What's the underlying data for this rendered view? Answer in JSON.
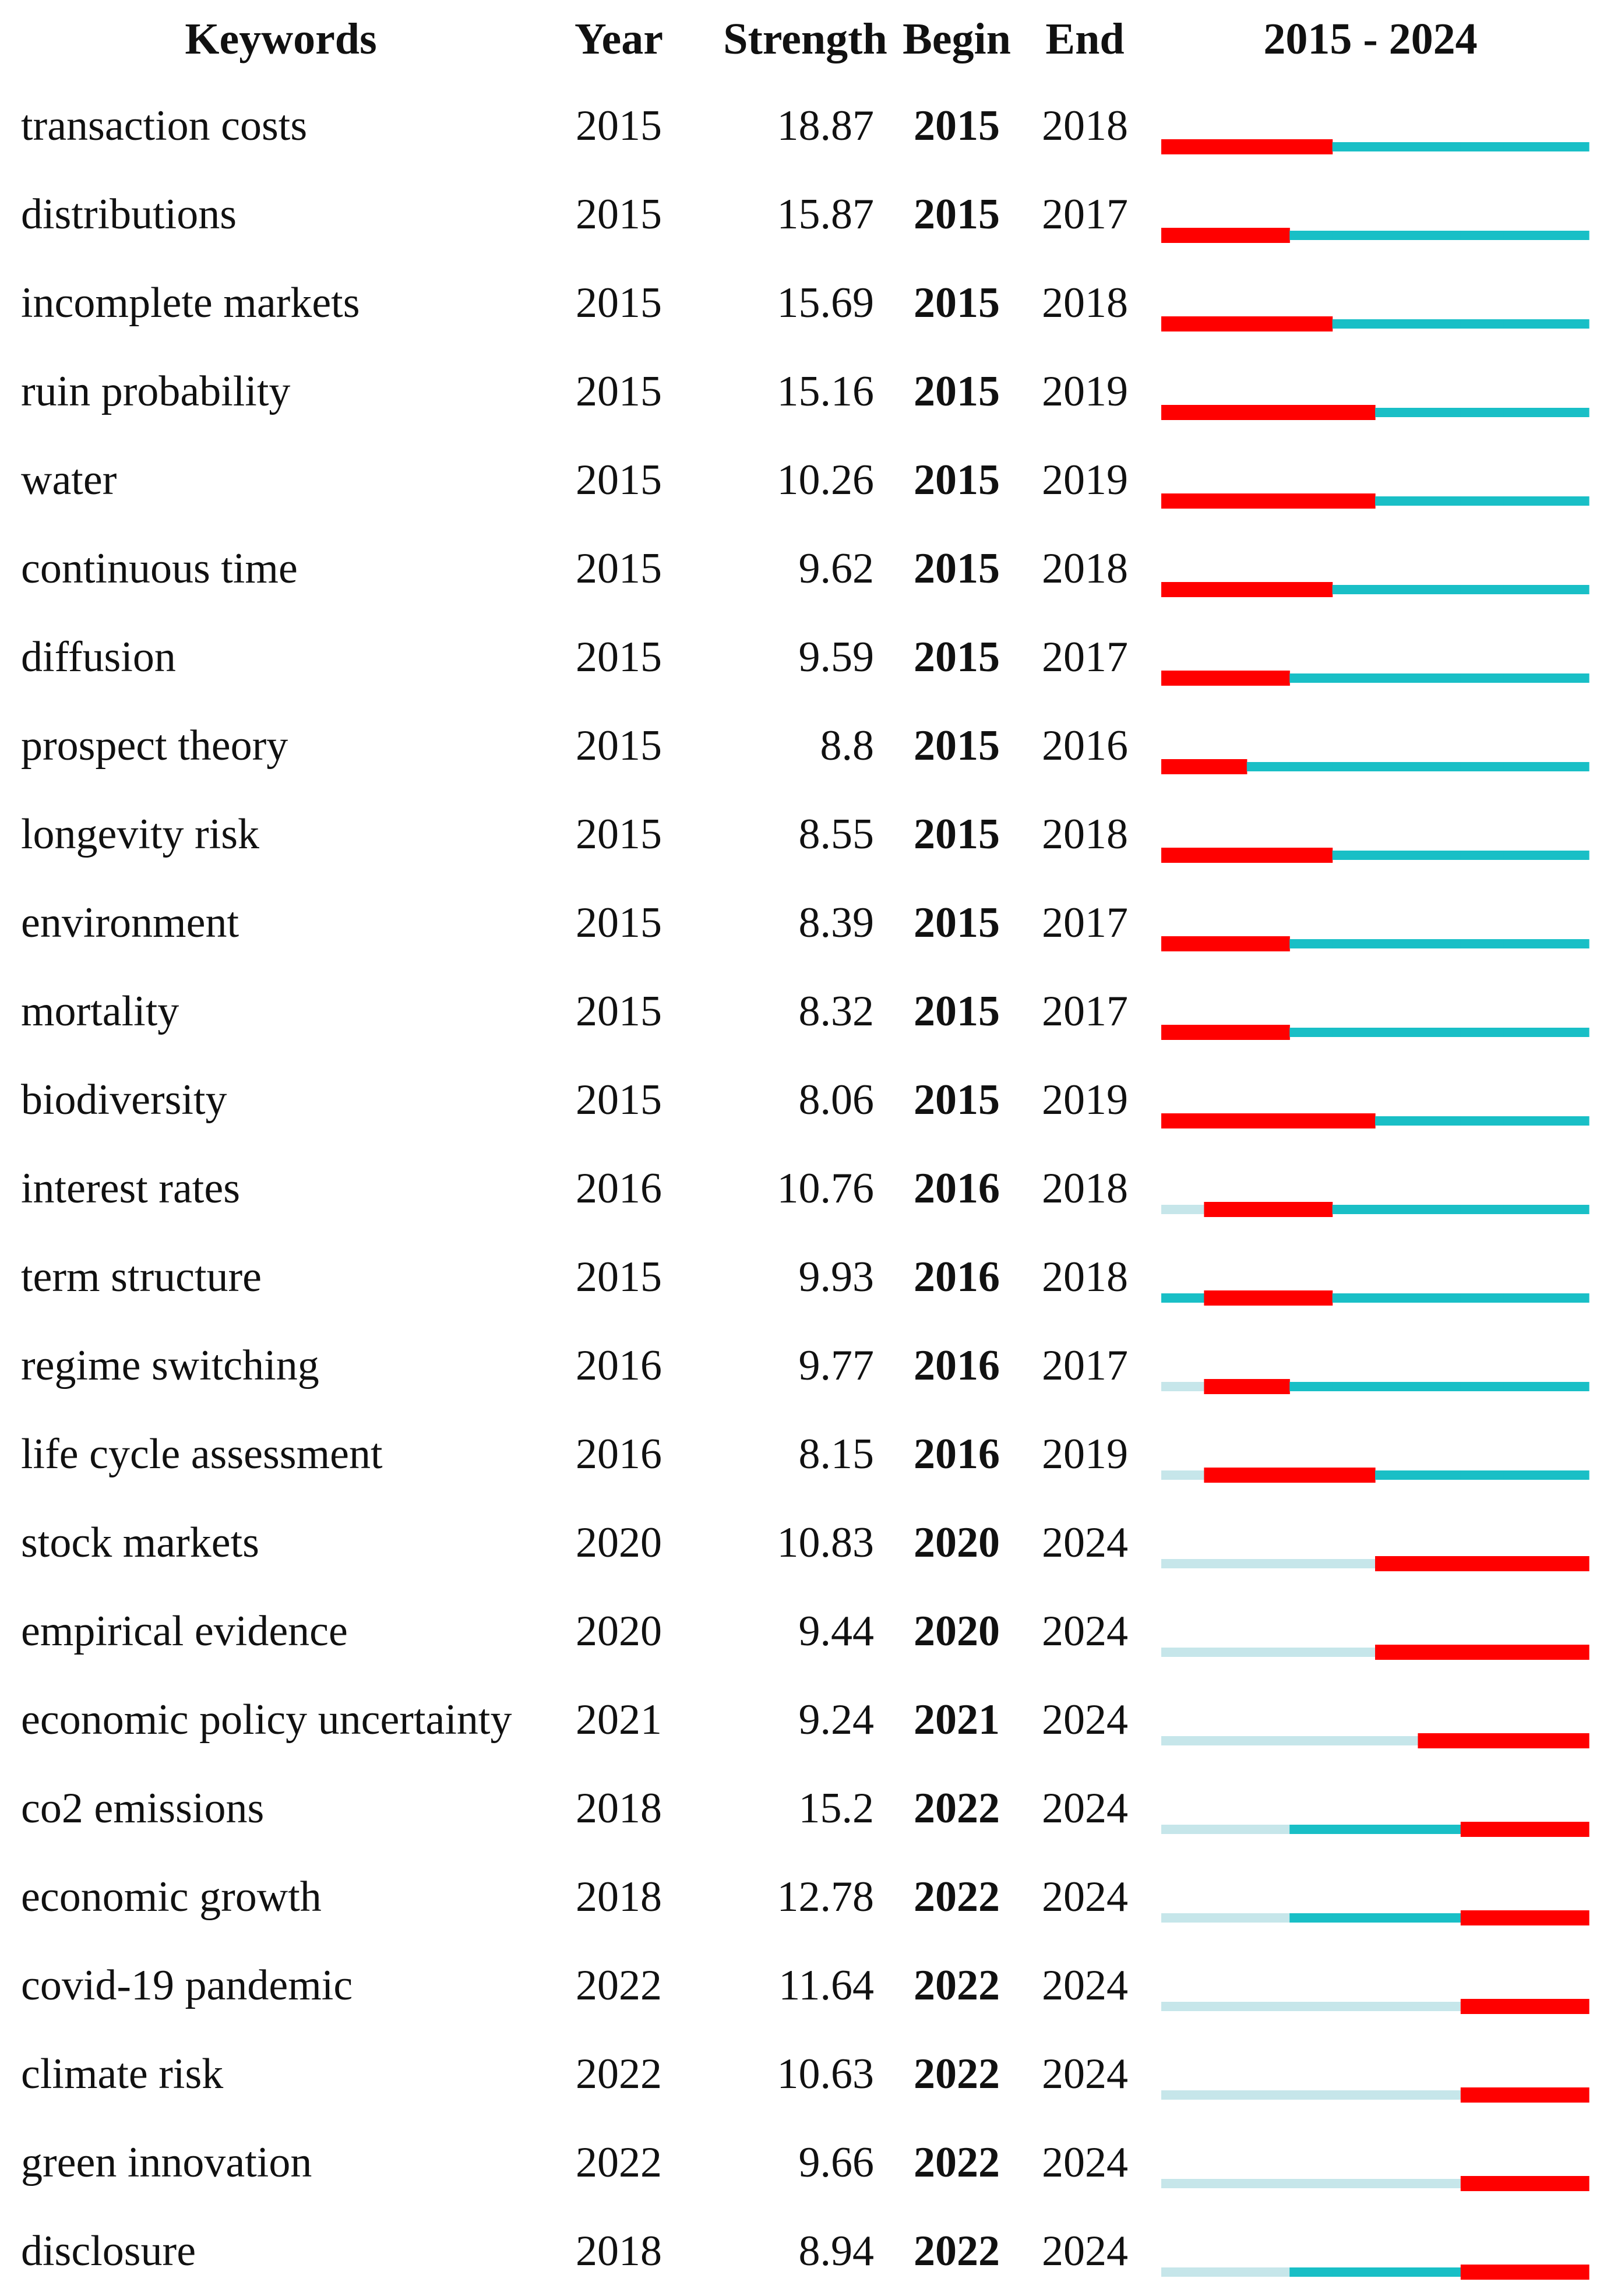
{
  "chart_data": {
    "type": "table",
    "headers": {
      "keywords": "Keywords",
      "year": "Year",
      "strength": "Strength",
      "begin": "Begin",
      "end": "End",
      "range": "2015 - 2024"
    },
    "range_start": 2015,
    "range_end": 2024,
    "colors": {
      "burst": "#ff0000",
      "active": "#19bfc6",
      "inactive": "#c6e6ea"
    },
    "rows": [
      {
        "keyword": "transaction costs",
        "year": "2015",
        "strength": "18.87",
        "begin": "2015",
        "end": "2018"
      },
      {
        "keyword": "distributions",
        "year": "2015",
        "strength": "15.87",
        "begin": "2015",
        "end": "2017"
      },
      {
        "keyword": "incomplete markets",
        "year": "2015",
        "strength": "15.69",
        "begin": "2015",
        "end": "2018"
      },
      {
        "keyword": "ruin probability",
        "year": "2015",
        "strength": "15.16",
        "begin": "2015",
        "end": "2019"
      },
      {
        "keyword": "water",
        "year": "2015",
        "strength": "10.26",
        "begin": "2015",
        "end": "2019"
      },
      {
        "keyword": "continuous time",
        "year": "2015",
        "strength": "9.62",
        "begin": "2015",
        "end": "2018"
      },
      {
        "keyword": "diffusion",
        "year": "2015",
        "strength": "9.59",
        "begin": "2015",
        "end": "2017"
      },
      {
        "keyword": "prospect theory",
        "year": "2015",
        "strength": "8.8",
        "begin": "2015",
        "end": "2016"
      },
      {
        "keyword": "longevity risk",
        "year": "2015",
        "strength": "8.55",
        "begin": "2015",
        "end": "2018"
      },
      {
        "keyword": "environment",
        "year": "2015",
        "strength": "8.39",
        "begin": "2015",
        "end": "2017"
      },
      {
        "keyword": "mortality",
        "year": "2015",
        "strength": "8.32",
        "begin": "2015",
        "end": "2017"
      },
      {
        "keyword": "biodiversity",
        "year": "2015",
        "strength": "8.06",
        "begin": "2015",
        "end": "2019"
      },
      {
        "keyword": "interest rates",
        "year": "2016",
        "strength": "10.76",
        "begin": "2016",
        "end": "2018"
      },
      {
        "keyword": "term structure",
        "year": "2015",
        "strength": "9.93",
        "begin": "2016",
        "end": "2018"
      },
      {
        "keyword": "regime switching",
        "year": "2016",
        "strength": "9.77",
        "begin": "2016",
        "end": "2017"
      },
      {
        "keyword": "life cycle assessment",
        "year": "2016",
        "strength": "8.15",
        "begin": "2016",
        "end": "2019"
      },
      {
        "keyword": "stock markets",
        "year": "2020",
        "strength": "10.83",
        "begin": "2020",
        "end": "2024"
      },
      {
        "keyword": "empirical evidence",
        "year": "2020",
        "strength": "9.44",
        "begin": "2020",
        "end": "2024"
      },
      {
        "keyword": "economic policy uncertainty",
        "year": "2021",
        "strength": "9.24",
        "begin": "2021",
        "end": "2024"
      },
      {
        "keyword": "co2 emissions",
        "year": "2018",
        "strength": "15.2",
        "begin": "2022",
        "end": "2024"
      },
      {
        "keyword": "economic growth",
        "year": "2018",
        "strength": "12.78",
        "begin": "2022",
        "end": "2024"
      },
      {
        "keyword": "covid-19 pandemic",
        "year": "2022",
        "strength": "11.64",
        "begin": "2022",
        "end": "2024"
      },
      {
        "keyword": "climate risk",
        "year": "2022",
        "strength": "10.63",
        "begin": "2022",
        "end": "2024"
      },
      {
        "keyword": "green innovation",
        "year": "2022",
        "strength": "9.66",
        "begin": "2022",
        "end": "2024"
      },
      {
        "keyword": "disclosure",
        "year": "2018",
        "strength": "8.94",
        "begin": "2022",
        "end": "2024"
      }
    ]
  }
}
